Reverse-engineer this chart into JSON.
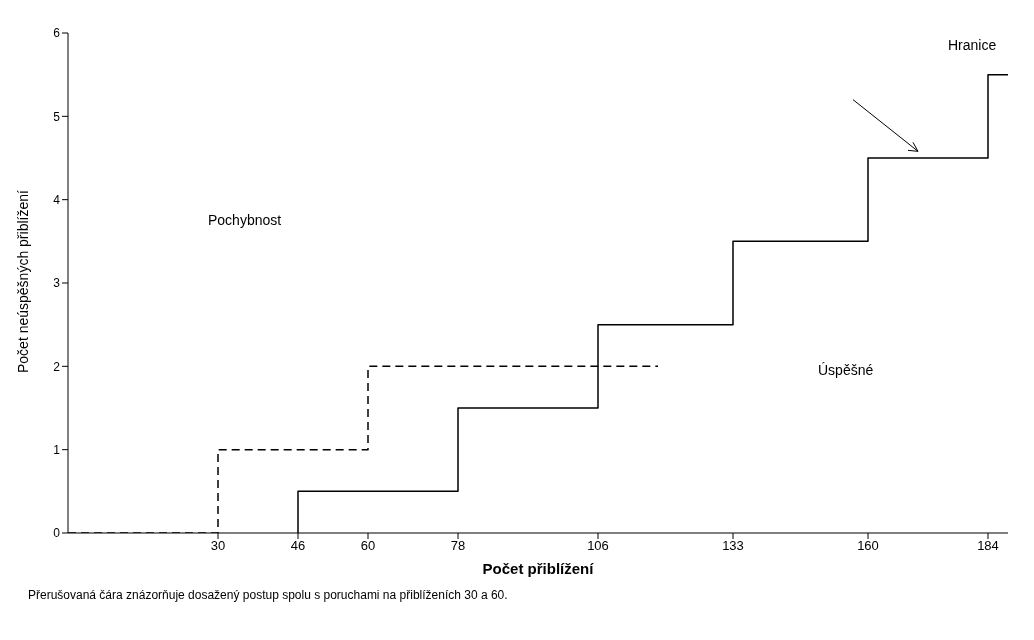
{
  "chart_data": {
    "type": "step",
    "xlabel": "Počet přiblížení",
    "ylabel": "Počet neúspěšných přiblížení",
    "xlim": [
      0,
      188
    ],
    "ylim": [
      0,
      6
    ],
    "xticks": [
      30,
      46,
      60,
      78,
      106,
      133,
      160,
      184
    ],
    "yticks": [
      0,
      1,
      2,
      3,
      4,
      5,
      6
    ],
    "grid": false,
    "legend": false,
    "marker": "none",
    "series": [
      {
        "color": "#000000",
        "line_style": "solid",
        "x": [
          46,
          46,
          78,
          106,
          133,
          160,
          184,
          188
        ],
        "values": [
          0,
          0.5,
          1.5,
          2.5,
          3.5,
          4.5,
          5.5,
          5.5
        ]
      },
      {
        "color": "#000000",
        "line_style": "dashed",
        "x": [
          0,
          30,
          60,
          118
        ],
        "values": [
          0,
          1,
          2,
          2
        ]
      }
    ],
    "annotations": [
      "Hranice",
      "Pochybnost",
      "Úspěšné",
      "Přerušovaná čára znázorňuje dosažený postup spolu s poruchami na přiblíženích 30 a 60."
    ]
  }
}
